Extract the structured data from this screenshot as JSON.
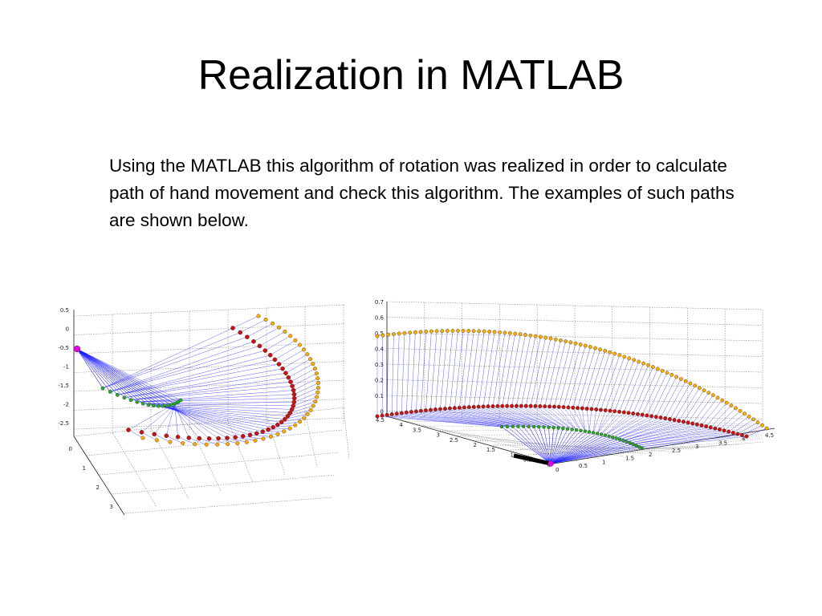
{
  "slide": {
    "title": "Realization in MATLAB",
    "body": "Using the MATLAB this algorithm of rotation was realized in order to calculate path of hand movement and check this algorithm. The examples of such paths are shown below."
  },
  "figures": {
    "left": {
      "z_ticks": [
        "0.5",
        "0",
        "-0.5",
        "-1",
        "-1.5",
        "-2",
        "-2.5"
      ],
      "y_ticks": [
        "0",
        "1",
        "2",
        "3"
      ]
    },
    "right": {
      "z_ticks": [
        "0.7",
        "0.6",
        "0.5",
        "0.4",
        "0.3",
        "0.2",
        "0.1",
        "0"
      ],
      "y_ticks": [
        "4.5",
        "4",
        "3.5",
        "3",
        "2.5",
        "2",
        "1.5",
        "1",
        "0.5",
        "0"
      ],
      "x_ticks": [
        "0",
        "0.5",
        "1",
        "1.5",
        "2",
        "2.5",
        "3",
        "3.5",
        "4",
        "4.5"
      ]
    },
    "colors": {
      "lines": "#1a1aff",
      "grid": "#888888",
      "origin": "#e600e6",
      "inner_path": "#22aa22",
      "mid_path": "#cc1111",
      "outer_path": "#ffaa00",
      "base_bar": "#000000"
    }
  }
}
